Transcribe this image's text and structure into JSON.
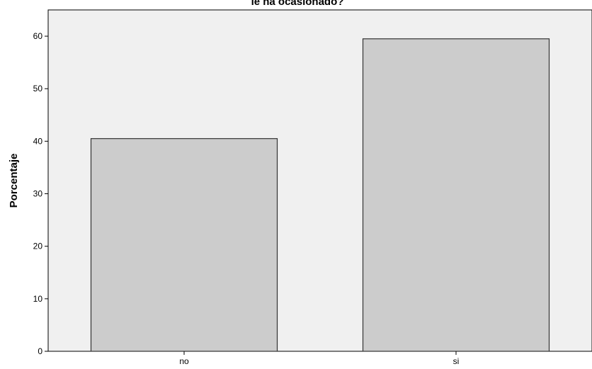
{
  "chart_data": {
    "type": "bar",
    "title": "le ha ocasionado?",
    "xlabel": "",
    "ylabel": "Porcentaje",
    "categories": [
      "no",
      "si"
    ],
    "values": [
      40.5,
      59.5
    ],
    "ylim": [
      0,
      65
    ],
    "yticks": [
      "0",
      "10",
      "20",
      "30",
      "40",
      "50",
      "60"
    ],
    "grid": false,
    "colors": {
      "plot_background": "#f0f0f0",
      "bar_fill": "#cccccc",
      "bar_stroke": "#333333",
      "axis": "#000000"
    }
  }
}
